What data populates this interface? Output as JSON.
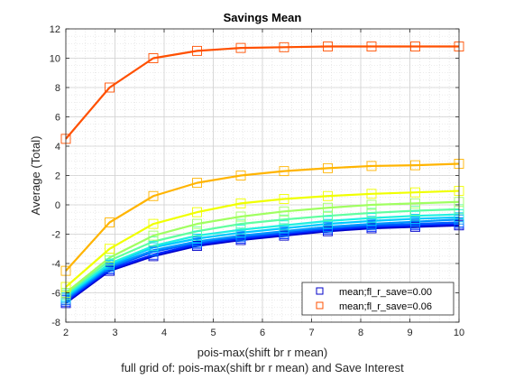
{
  "chart_data": {
    "type": "line",
    "title": "Savings Mean",
    "xlabel": "pois-max(shift br r mean)",
    "xlabel2": "full grid of: pois-max(shift br r mean) and Save Interest",
    "ylabel": "Average (Total)",
    "xlim": [
      2,
      10
    ],
    "ylim": [
      -8,
      12
    ],
    "xticks": [
      "2",
      "3",
      "4",
      "5",
      "6",
      "7",
      "8",
      "9",
      "10"
    ],
    "yticks": [
      "-8",
      "-6",
      "-4",
      "-2",
      "0",
      "2",
      "4",
      "6",
      "8",
      "10",
      "12"
    ],
    "grid": true,
    "minor_grid": true,
    "legend_position": "bottom-right",
    "x": [
      2,
      2.89,
      3.78,
      4.67,
      5.56,
      6.44,
      7.33,
      8.22,
      9.11,
      10
    ],
    "series": [
      {
        "name": "mean;fl_r_save=0.00",
        "marker": "square",
        "legend": true,
        "color": "#0000c8",
        "values": [
          -6.7,
          -4.5,
          -3.5,
          -2.8,
          -2.4,
          -2.1,
          -1.8,
          -1.6,
          -1.5,
          -1.4
        ]
      },
      {
        "color": "#0024ff",
        "values": [
          -6.6,
          -4.4,
          -3.4,
          -2.7,
          -2.3,
          -2.0,
          -1.7,
          -1.5,
          -1.4,
          -1.3
        ]
      },
      {
        "color": "#005cff",
        "values": [
          -6.5,
          -4.3,
          -3.2,
          -2.6,
          -2.2,
          -1.9,
          -1.6,
          -1.4,
          -1.3,
          -1.2
        ]
      },
      {
        "color": "#0094ff",
        "values": [
          -6.4,
          -4.2,
          -3.1,
          -2.5,
          -2.1,
          -1.8,
          -1.5,
          -1.3,
          -1.15,
          -1.0
        ]
      },
      {
        "color": "#00c8ff",
        "values": [
          -6.3,
          -4.1,
          -2.9,
          -2.3,
          -1.9,
          -1.6,
          -1.3,
          -1.1,
          -0.95,
          -0.85
        ]
      },
      {
        "color": "#20f0e0",
        "values": [
          -6.2,
          -4.0,
          -2.8,
          -2.1,
          -1.7,
          -1.4,
          -1.1,
          -0.9,
          -0.75,
          -0.65
        ]
      },
      {
        "color": "#60ffa0",
        "values": [
          -6.1,
          -3.8,
          -2.5,
          -1.8,
          -1.3,
          -1.0,
          -0.75,
          -0.55,
          -0.4,
          -0.3
        ]
      },
      {
        "color": "#a0ff60",
        "values": [
          -6.0,
          -3.6,
          -2.1,
          -1.3,
          -0.8,
          -0.45,
          -0.2,
          0.0,
          0.1,
          0.2
        ]
      },
      {
        "color": "#f0ff00",
        "values": [
          -5.6,
          -3.0,
          -1.3,
          -0.5,
          0.1,
          0.4,
          0.6,
          0.75,
          0.85,
          0.95
        ]
      },
      {
        "color": "#ffb400",
        "values": [
          -4.5,
          -1.2,
          0.6,
          1.5,
          2.0,
          2.3,
          2.5,
          2.65,
          2.7,
          2.8
        ]
      },
      {
        "name": "mean;fl_r_save=0.06",
        "marker": "square",
        "legend": true,
        "color": "#ff5000",
        "values": [
          4.5,
          8.0,
          10.0,
          10.5,
          10.7,
          10.75,
          10.8,
          10.8,
          10.8,
          10.8
        ]
      }
    ]
  }
}
